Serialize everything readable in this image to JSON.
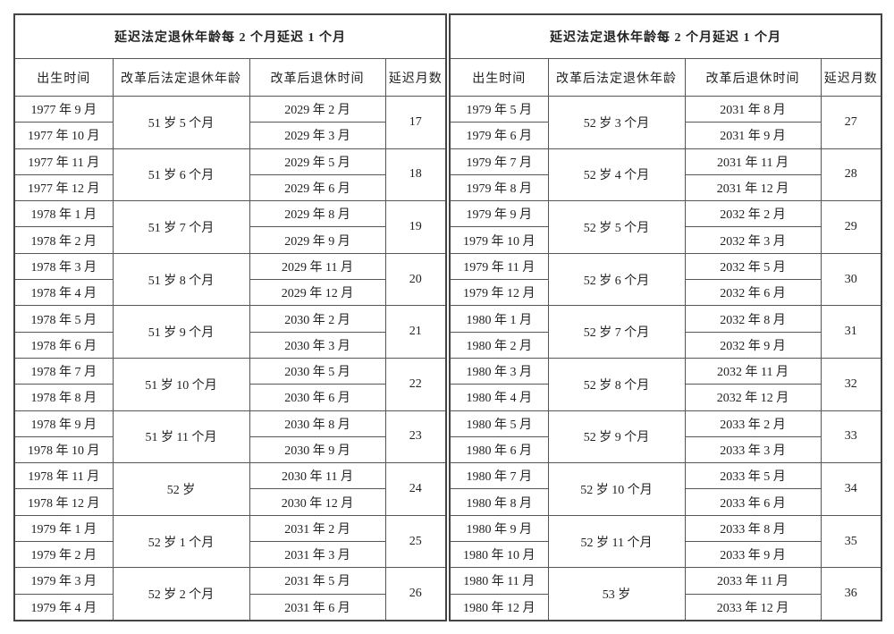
{
  "tables": [
    {
      "title": "延迟法定退休年龄每 2 个月延迟 1 个月",
      "headers": [
        "出生时间",
        "改革后法定退休年龄",
        "改革后退休时间",
        "延迟月数"
      ],
      "groups": [
        {
          "births": [
            "1977 年 9 月",
            "1977 年 10 月"
          ],
          "age": "51 岁 5 个月",
          "retire": [
            "2029 年 2 月",
            "2029 年 3 月"
          ],
          "delay": 17
        },
        {
          "births": [
            "1977 年 11 月",
            "1977 年 12 月"
          ],
          "age": "51 岁 6 个月",
          "retire": [
            "2029 年 5 月",
            "2029 年 6 月"
          ],
          "delay": 18
        },
        {
          "births": [
            "1978 年 1 月",
            "1978 年 2 月"
          ],
          "age": "51 岁 7 个月",
          "retire": [
            "2029 年 8 月",
            "2029 年 9 月"
          ],
          "delay": 19
        },
        {
          "births": [
            "1978 年 3 月",
            "1978 年 4 月"
          ],
          "age": "51 岁 8 个月",
          "retire": [
            "2029 年 11 月",
            "2029 年 12 月"
          ],
          "delay": 20
        },
        {
          "births": [
            "1978 年 5 月",
            "1978 年 6 月"
          ],
          "age": "51 岁 9 个月",
          "retire": [
            "2030 年 2 月",
            "2030 年 3 月"
          ],
          "delay": 21
        },
        {
          "births": [
            "1978 年 7 月",
            "1978 年 8 月"
          ],
          "age": "51 岁 10 个月",
          "retire": [
            "2030 年 5 月",
            "2030 年 6 月"
          ],
          "delay": 22
        },
        {
          "births": [
            "1978 年 9 月",
            "1978 年 10 月"
          ],
          "age": "51 岁 11 个月",
          "retire": [
            "2030 年 8 月",
            "2030 年 9 月"
          ],
          "delay": 23
        },
        {
          "births": [
            "1978 年 11 月",
            "1978 年 12 月"
          ],
          "age": "52 岁",
          "retire": [
            "2030 年 11 月",
            "2030 年 12 月"
          ],
          "delay": 24
        },
        {
          "births": [
            "1979 年 1 月",
            "1979 年 2 月"
          ],
          "age": "52 岁 1 个月",
          "retire": [
            "2031 年 2 月",
            "2031 年 3 月"
          ],
          "delay": 25
        },
        {
          "births": [
            "1979 年 3 月",
            "1979 年 4 月"
          ],
          "age": "52 岁 2 个月",
          "retire": [
            "2031 年 5 月",
            "2031 年 6 月"
          ],
          "delay": 26
        }
      ]
    },
    {
      "title": "延迟法定退休年龄每 2 个月延迟 1 个月",
      "headers": [
        "出生时间",
        "改革后法定退休年龄",
        "改革后退休时间",
        "延迟月数"
      ],
      "groups": [
        {
          "births": [
            "1979 年 5 月",
            "1979 年 6 月"
          ],
          "age": "52 岁 3 个月",
          "retire": [
            "2031 年 8 月",
            "2031 年 9 月"
          ],
          "delay": 27
        },
        {
          "births": [
            "1979 年 7 月",
            "1979 年 8 月"
          ],
          "age": "52 岁 4 个月",
          "retire": [
            "2031 年 11 月",
            "2031 年 12 月"
          ],
          "delay": 28
        },
        {
          "births": [
            "1979 年 9 月",
            "1979 年 10 月"
          ],
          "age": "52 岁 5 个月",
          "retire": [
            "2032 年 2 月",
            "2032 年 3 月"
          ],
          "delay": 29
        },
        {
          "births": [
            "1979 年 11 月",
            "1979 年 12 月"
          ],
          "age": "52 岁 6 个月",
          "retire": [
            "2032 年 5 月",
            "2032 年 6 月"
          ],
          "delay": 30
        },
        {
          "births": [
            "1980 年 1 月",
            "1980 年 2 月"
          ],
          "age": "52 岁 7 个月",
          "retire": [
            "2032 年 8 月",
            "2032 年 9 月"
          ],
          "delay": 31
        },
        {
          "births": [
            "1980 年 3 月",
            "1980 年 4 月"
          ],
          "age": "52 岁 8 个月",
          "retire": [
            "2032 年 11 月",
            "2032 年 12 月"
          ],
          "delay": 32
        },
        {
          "births": [
            "1980 年 5 月",
            "1980 年 6 月"
          ],
          "age": "52 岁 9 个月",
          "retire": [
            "2033 年 2 月",
            "2033 年 3 月"
          ],
          "delay": 33
        },
        {
          "births": [
            "1980 年 7 月",
            "1980 年 8 月"
          ],
          "age": "52 岁 10 个月",
          "retire": [
            "2033 年 5 月",
            "2033 年 6 月"
          ],
          "delay": 34
        },
        {
          "births": [
            "1980 年 9 月",
            "1980 年 10 月"
          ],
          "age": "52 岁 11 个月",
          "retire": [
            "2033 年 8 月",
            "2033 年 9 月"
          ],
          "delay": 35
        },
        {
          "births": [
            "1980 年 11 月",
            "1980 年 12 月"
          ],
          "age": "53 岁",
          "retire": [
            "2033 年 11 月",
            "2033 年 12 月"
          ],
          "delay": 36
        }
      ]
    }
  ]
}
